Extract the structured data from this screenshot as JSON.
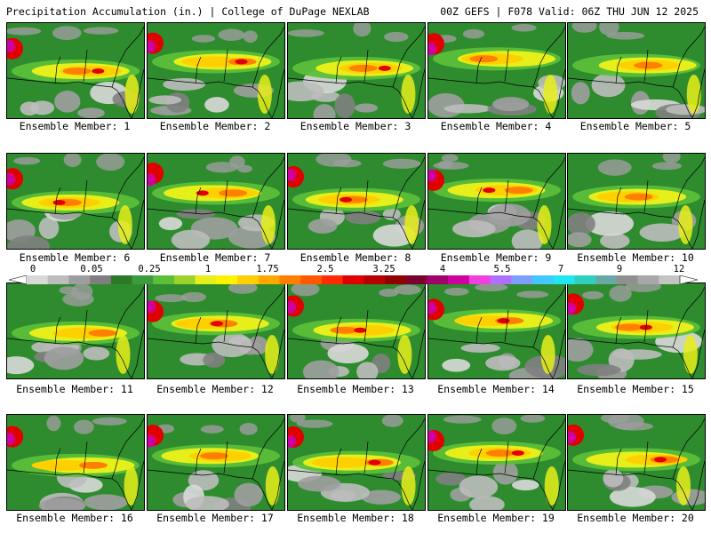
{
  "header": {
    "title_left": "Precipitation Accumulation (in.) | College of DuPage NEXLAB",
    "title_right": "00Z GEFS | F078 Valid: 06Z THU JUN 12 2025"
  },
  "panels": [
    {
      "label": "Ensemble Member: 1"
    },
    {
      "label": "Ensemble Member: 2"
    },
    {
      "label": "Ensemble Member: 3"
    },
    {
      "label": "Ensemble Member: 4"
    },
    {
      "label": "Ensemble Member: 5"
    },
    {
      "label": "Ensemble Member: 6"
    },
    {
      "label": "Ensemble Member: 7"
    },
    {
      "label": "Ensemble Member: 8"
    },
    {
      "label": "Ensemble Member: 9"
    },
    {
      "label": "Ensemble Member: 10"
    },
    {
      "label": "Ensemble Member: 11"
    },
    {
      "label": "Ensemble Member: 12"
    },
    {
      "label": "Ensemble Member: 13"
    },
    {
      "label": "Ensemble Member: 14"
    },
    {
      "label": "Ensemble Member: 15"
    },
    {
      "label": "Ensemble Member: 16"
    },
    {
      "label": "Ensemble Member: 17"
    },
    {
      "label": "Ensemble Member: 18"
    },
    {
      "label": "Ensemble Member: 19"
    },
    {
      "label": "Ensemble Member: 20"
    }
  ],
  "colorbar": {
    "labels": [
      "0",
      "0.05",
      "0.25",
      "1",
      "1.75",
      "2.5",
      "3.25",
      "4",
      "5.5",
      "7",
      "9",
      "12"
    ],
    "colors": [
      "#d9d9d9",
      "#bdbdbd",
      "#9e9e9e",
      "#7f7f7f",
      "#2a7a2a",
      "#3d9b3d",
      "#5cbf3a",
      "#9bd32a",
      "#e6ef1a",
      "#fff200",
      "#ffd000",
      "#ffa800",
      "#ff8000",
      "#ff5a00",
      "#ff2a00",
      "#e00000",
      "#b80000",
      "#900000",
      "#7a0030",
      "#a0006a",
      "#d000a0",
      "#f040e0",
      "#b070ff",
      "#7f9fff",
      "#40c8ff",
      "#20e6f0",
      "#30d0c0",
      "#6aa8a8",
      "#909090",
      "#a8a8a8",
      "#c4c4c4"
    ]
  },
  "map_colors": {
    "border": "#000000",
    "background_green": "#2e8b2e"
  }
}
